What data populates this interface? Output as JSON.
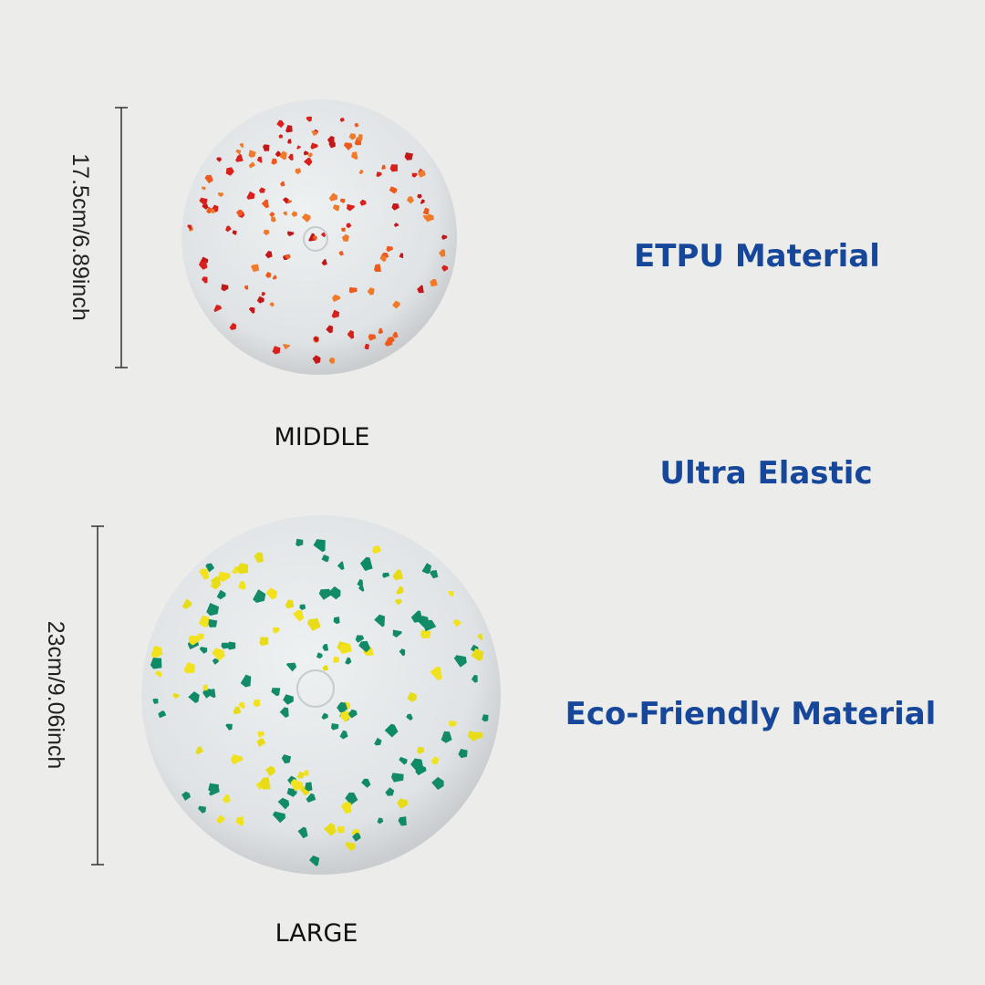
{
  "sizes": [
    {
      "label": "MIDDLE",
      "dimension": "17.5cm/6.89inch"
    },
    {
      "label": "LARGE",
      "dimension": "23cm/9.06inch"
    }
  ],
  "features": [
    "ETPU Material",
    "Ultra Elastic",
    "Eco-Friendly Material"
  ]
}
